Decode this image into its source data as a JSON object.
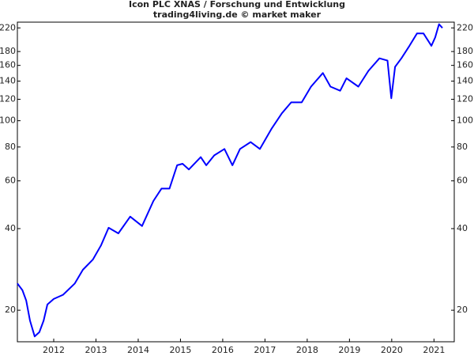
{
  "chart_data": {
    "type": "line",
    "title": "Icon PLC XNAS / Forschung und Entwicklung",
    "subtitle": "trading4living.de © market maker",
    "log_scale": true,
    "series": [
      {
        "name": "Icon PLC",
        "color": "#0000ff",
        "x": [
          2011.14,
          2011.26,
          2011.35,
          2011.44,
          2011.55,
          2011.66,
          2011.76,
          2011.85,
          2012.0,
          2012.22,
          2012.5,
          2012.69,
          2012.93,
          2013.12,
          2013.3,
          2013.53,
          2013.81,
          2014.09,
          2014.36,
          2014.55,
          2014.74,
          2014.92,
          2015.05,
          2015.2,
          2015.48,
          2015.61,
          2015.8,
          2016.04,
          2016.23,
          2016.41,
          2016.66,
          2016.88,
          2017.16,
          2017.4,
          2017.62,
          2017.87,
          2018.09,
          2018.37,
          2018.55,
          2018.78,
          2018.93,
          2019.21,
          2019.45,
          2019.71,
          2019.9,
          2019.99,
          2020.08,
          2020.23,
          2020.42,
          2020.6,
          2020.75,
          2020.94,
          2021.03,
          2021.12,
          2021.2
        ],
        "values": [
          25.1,
          23.7,
          21.7,
          18.3,
          16,
          16.6,
          18.3,
          21,
          22,
          22.8,
          25.1,
          28.2,
          30.8,
          34.7,
          40.3,
          38.4,
          44.3,
          40.9,
          50.6,
          56.2,
          56.2,
          68.5,
          69.4,
          66.1,
          73.4,
          68.5,
          74.5,
          78.7,
          68.5,
          78.7,
          83.4,
          78.7,
          93.7,
          106.5,
          116.9,
          116.9,
          133.6,
          150,
          133.6,
          129,
          143.5,
          133.6,
          152.8,
          169.9,
          166.6,
          121,
          158,
          169.9,
          189,
          210,
          210,
          189,
          203,
          227,
          220
        ]
      }
    ],
    "xlim": [
      2011.14,
      2021.48
    ],
    "xticks": [
      2012,
      2013,
      2014,
      2015,
      2016,
      2017,
      2018,
      2019,
      2020,
      2021
    ],
    "ylim": [
      15.3,
      231
    ],
    "yticks": [
      20,
      40,
      60,
      80,
      100,
      120,
      140,
      160,
      180,
      220
    ]
  }
}
